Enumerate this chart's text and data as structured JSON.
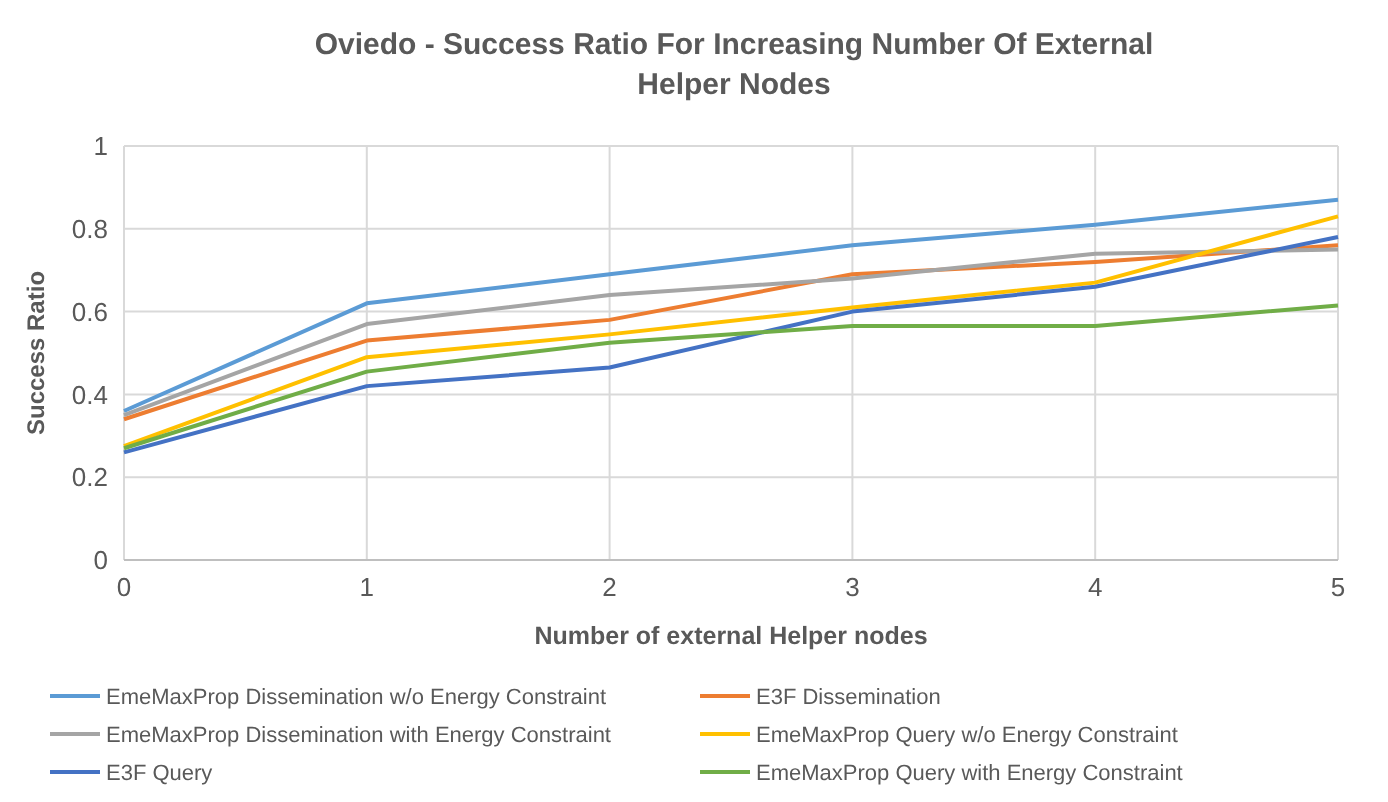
{
  "chart_data": {
    "type": "line",
    "title": "Oviedo - Success Ratio For Increasing Number Of External Helper Nodes",
    "xlabel": "Number of external Helper nodes",
    "ylabel": "Success Ratio",
    "x": [
      0,
      1,
      2,
      3,
      4,
      5
    ],
    "xlim": [
      0,
      5
    ],
    "xticks": [
      0,
      1,
      2,
      3,
      4,
      5
    ],
    "ylim": [
      0,
      1
    ],
    "yticks": [
      0,
      0.2,
      0.4,
      0.6,
      0.8,
      1
    ],
    "grid": true,
    "legend": "bottom",
    "marker": "none",
    "line_style": "solid",
    "series": [
      {
        "name": "EmeMaxProp Dissemination w/o Energy Constraint",
        "color": "#5b9bd5",
        "values": [
          0.36,
          0.62,
          0.69,
          0.76,
          0.81,
          0.87
        ]
      },
      {
        "name": "E3F Dissemination",
        "color": "#ed7d31",
        "values": [
          0.34,
          0.53,
          0.58,
          0.69,
          0.72,
          0.76
        ]
      },
      {
        "name": "EmeMaxProp Dissemination with Energy Constraint",
        "color": "#a5a5a5",
        "values": [
          0.35,
          0.57,
          0.64,
          0.68,
          0.74,
          0.75
        ]
      },
      {
        "name": "EmeMaxProp Query w/o Energy Constraint",
        "color": "#ffc000",
        "values": [
          0.275,
          0.49,
          0.545,
          0.61,
          0.67,
          0.83
        ]
      },
      {
        "name": "E3F Query",
        "color": "#4472c4",
        "values": [
          0.26,
          0.42,
          0.465,
          0.6,
          0.66,
          0.78
        ]
      },
      {
        "name": "EmeMaxProp Query with Energy Constraint",
        "color": "#70ad47",
        "values": [
          0.27,
          0.455,
          0.525,
          0.565,
          0.565,
          0.615
        ]
      }
    ]
  }
}
